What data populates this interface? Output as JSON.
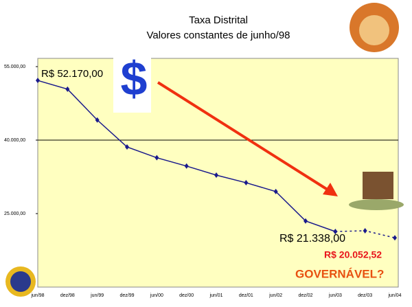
{
  "chart_data": {
    "type": "line",
    "title": "Taxa Distrital",
    "subtitle": "Valores constantes de junho/98",
    "categories": [
      "jun/98",
      "dez/98",
      "jun/99",
      "dez/99",
      "jun/00",
      "dez/00",
      "jun/01",
      "dez/01",
      "jun/02",
      "dez/02",
      "jun/03",
      "dez/03",
      "jun/04"
    ],
    "series": [
      {
        "color": "#1a1a8c",
        "values": [
          52170,
          50400,
          44100,
          38600,
          36400,
          34700,
          32850,
          31300,
          29500,
          23500,
          21338,
          null,
          null
        ]
      },
      {
        "color": "#1a1a8c",
        "dashed": true,
        "values": [
          null,
          null,
          null,
          null,
          null,
          null,
          null,
          null,
          null,
          null,
          21338,
          21500,
          20052.52
        ]
      }
    ],
    "ylim": [
      10000,
      55000
    ],
    "yticks": [
      {
        "value": 25000,
        "label": "25.000,00"
      },
      {
        "value": 40000,
        "label": "40.000,00"
      },
      {
        "value": 55000,
        "label": "55.000,00"
      }
    ],
    "gridlines": [
      40000
    ],
    "plot_background": "#ffffc0",
    "annotations": [
      {
        "text": "R$ 52.170,00",
        "color": "#000000"
      },
      {
        "text": "R$ 21.338,00",
        "color": "#000000"
      },
      {
        "text": "R$ 20.052,52",
        "color": "#e8141b"
      },
      {
        "text": "GOVERNÁVEL?",
        "color": "#e85010"
      },
      {
        "text": "$",
        "color": "#1f3fd0"
      }
    ]
  }
}
